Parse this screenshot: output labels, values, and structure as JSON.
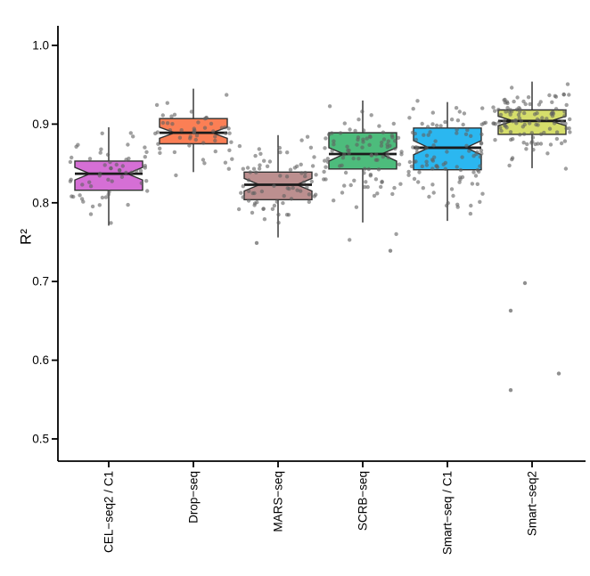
{
  "chart_data": {
    "type": "bar",
    "subtype": "notched-boxplot-with-jitter",
    "title": "",
    "xlabel": "",
    "ylabel": "R²",
    "ylim": [
      0.47,
      1.02
    ],
    "yticks": [
      1.0,
      0.9,
      0.8,
      0.7,
      0.6,
      0.5
    ],
    "ytick_labels": [
      "1.0",
      "0.9",
      "0.8",
      "0.7",
      "0.6",
      "0.5"
    ],
    "categories": [
      "CEL−seq2 / C1",
      "Drop−seq",
      "MARS−seq",
      "SCRB−seq",
      "Smart−seq / C1",
      "Smart−seq2"
    ],
    "grid": "off",
    "legend": "none",
    "axis_color": "#000000",
    "point_color": "#606060",
    "box_border_color": "#303030",
    "median_color": "#1b1b1b",
    "groups": [
      {
        "label": "CEL−seq2 / C1",
        "color": "#D56FD5",
        "whisker_low": 0.771,
        "q1": 0.816,
        "notch_low": 0.829,
        "median": 0.837,
        "notch_high": 0.845,
        "q3": 0.853,
        "whisker_high": 0.896,
        "n_points": 58,
        "points_min": 0.772,
        "points_max": 0.9,
        "outliers": []
      },
      {
        "label": "Drop−seq",
        "color": "#FB7F55",
        "whisker_low": 0.839,
        "q1": 0.875,
        "notch_low": 0.882,
        "median": 0.889,
        "notch_high": 0.896,
        "q3": 0.907,
        "whisker_high": 0.945,
        "n_points": 52,
        "points_min": 0.833,
        "points_max": 0.945,
        "outliers": []
      },
      {
        "label": "MARS−seq",
        "color": "#BC8F8F",
        "whisker_low": 0.756,
        "q1": 0.804,
        "notch_low": 0.815,
        "median": 0.823,
        "notch_high": 0.831,
        "q3": 0.839,
        "whisker_high": 0.886,
        "n_points": 72,
        "points_min": 0.75,
        "points_max": 0.887,
        "outliers": [
          {
            "value": 0.749,
            "dx": -24
          }
        ]
      },
      {
        "label": "SCRB−seq",
        "color": "#4DBC7C",
        "whisker_low": 0.775,
        "q1": 0.843,
        "notch_low": 0.853,
        "median": 0.862,
        "notch_high": 0.87,
        "q3": 0.889,
        "whisker_high": 0.93,
        "n_points": 96,
        "points_min": 0.74,
        "points_max": 0.932,
        "outliers": [
          {
            "value": 0.739,
            "dx": 31
          }
        ]
      },
      {
        "label": "Smart−seq / C1",
        "color": "#2BB7F0",
        "whisker_low": 0.777,
        "q1": 0.842,
        "notch_low": 0.861,
        "median": 0.87,
        "notch_high": 0.879,
        "q3": 0.895,
        "whisker_high": 0.928,
        "n_points": 102,
        "points_min": 0.773,
        "points_max": 0.93,
        "outliers": []
      },
      {
        "label": "Smart−seq2",
        "color": "#D6DE6B",
        "whisker_low": 0.844,
        "q1": 0.887,
        "notch_low": 0.898,
        "median": 0.904,
        "notch_high": 0.91,
        "q3": 0.918,
        "whisker_high": 0.954,
        "n_points": 112,
        "points_min": 0.808,
        "points_max": 0.957,
        "outliers": [
          {
            "value": 0.698,
            "dx": -8
          },
          {
            "value": 0.663,
            "dx": -24
          },
          {
            "value": 0.583,
            "dx": 30
          },
          {
            "value": 0.562,
            "dx": -24
          }
        ]
      }
    ]
  }
}
